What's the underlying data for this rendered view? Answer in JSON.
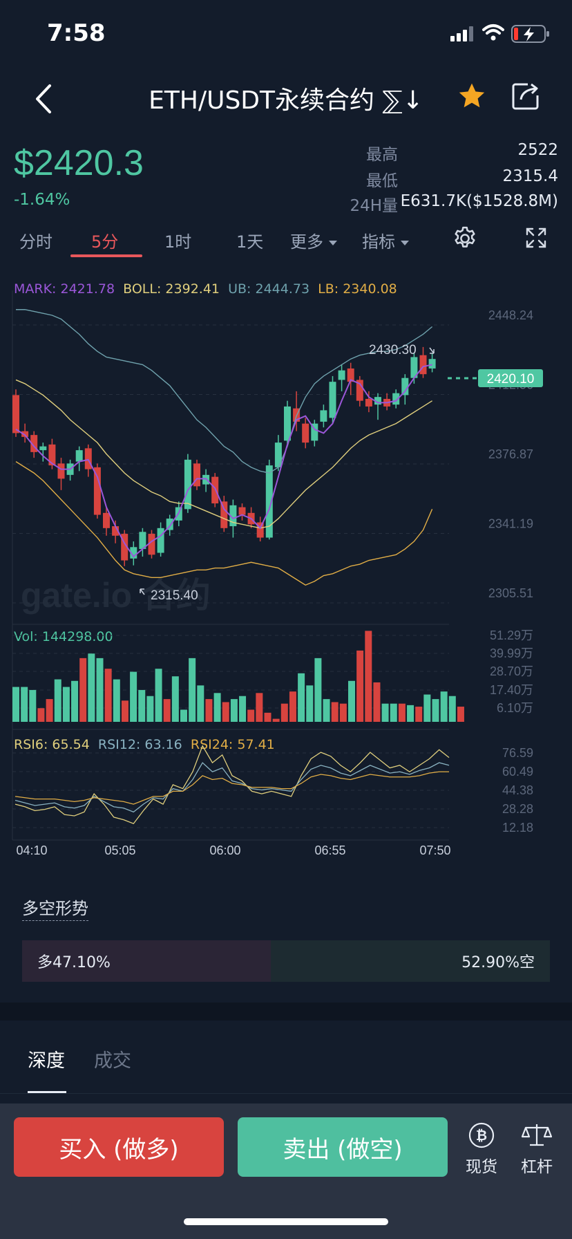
{
  "status": {
    "time": "7:58"
  },
  "header": {
    "title": "ETH/USDT永续合约 ⅀↓"
  },
  "price": {
    "last": "$2420.3",
    "change": "-1.64%"
  },
  "stats": {
    "high_label": "最高",
    "high_value": "2522",
    "low_label": "最低",
    "low_value": "2315.4",
    "vol_label": "24H量",
    "vol_value": "E631.7K($1528.8M)"
  },
  "tabs": {
    "time": "分时",
    "m5": "5分",
    "h1": "1时",
    "d1": "1天",
    "more": "更多",
    "indicators": "指标"
  },
  "indicators": {
    "mark": "MARK: 2421.78",
    "boll": "BOLL: 2392.41",
    "ub": "UB: 2444.73",
    "lb": "LB: 2340.08",
    "vol": "Vol: 144298.00",
    "rsi6": "RSI6: 65.54",
    "rsi12": "RSI12: 63.16",
    "rsi24": "RSI24: 57.41"
  },
  "chart_data": [
    {
      "type": "candlestick",
      "title": "",
      "ylim": [
        2300,
        2455
      ],
      "y_ticks": [
        "2448.24",
        "2412.56",
        "2376.87",
        "2341.19",
        "2305.51"
      ],
      "last_price_tag": "2420.10",
      "annotations": [
        {
          "text": "2430.30",
          "x": 44,
          "y": 2430.3
        },
        {
          "text": "2315.40",
          "x": 13,
          "y": 2315.4
        }
      ],
      "watermark": "gate.io 合约",
      "candles": [
        {
          "o": 2405,
          "c": 2385,
          "h": 2408,
          "l": 2383
        },
        {
          "o": 2386,
          "c": 2383,
          "h": 2390,
          "l": 2380
        },
        {
          "o": 2384,
          "c": 2375,
          "h": 2386,
          "l": 2372
        },
        {
          "o": 2376,
          "c": 2378,
          "h": 2380,
          "l": 2370
        },
        {
          "o": 2379,
          "c": 2368,
          "h": 2382,
          "l": 2366
        },
        {
          "o": 2369,
          "c": 2361,
          "h": 2372,
          "l": 2355
        },
        {
          "o": 2363,
          "c": 2369,
          "h": 2371,
          "l": 2360
        },
        {
          "o": 2370,
          "c": 2376,
          "h": 2378,
          "l": 2365
        },
        {
          "o": 2377,
          "c": 2366,
          "h": 2379,
          "l": 2362
        },
        {
          "o": 2367,
          "c": 2342,
          "h": 2369,
          "l": 2340
        },
        {
          "o": 2343,
          "c": 2335,
          "h": 2346,
          "l": 2331
        },
        {
          "o": 2336,
          "c": 2331,
          "h": 2339,
          "l": 2327
        },
        {
          "o": 2332,
          "c": 2318,
          "h": 2334,
          "l": 2315
        },
        {
          "o": 2319,
          "c": 2325,
          "h": 2328,
          "l": 2315.4
        },
        {
          "o": 2324,
          "c": 2333,
          "h": 2335,
          "l": 2320
        },
        {
          "o": 2332,
          "c": 2321,
          "h": 2334,
          "l": 2319
        },
        {
          "o": 2322,
          "c": 2335,
          "h": 2338,
          "l": 2320
        },
        {
          "o": 2334,
          "c": 2340,
          "h": 2342,
          "l": 2331
        },
        {
          "o": 2339,
          "c": 2346,
          "h": 2349,
          "l": 2336
        },
        {
          "o": 2345,
          "c": 2371,
          "h": 2374,
          "l": 2343
        },
        {
          "o": 2369,
          "c": 2357,
          "h": 2371,
          "l": 2355
        },
        {
          "o": 2358,
          "c": 2363,
          "h": 2366,
          "l": 2354
        },
        {
          "o": 2362,
          "c": 2348,
          "h": 2364,
          "l": 2346
        },
        {
          "o": 2349,
          "c": 2335,
          "h": 2352,
          "l": 2333
        },
        {
          "o": 2336,
          "c": 2347,
          "h": 2350,
          "l": 2330
        },
        {
          "o": 2346,
          "c": 2342,
          "h": 2348,
          "l": 2339
        },
        {
          "o": 2343,
          "c": 2337,
          "h": 2346,
          "l": 2335
        },
        {
          "o": 2338,
          "c": 2330,
          "h": 2341,
          "l": 2328
        },
        {
          "o": 2330,
          "c": 2368,
          "h": 2371,
          "l": 2329
        },
        {
          "o": 2367,
          "c": 2380,
          "h": 2384,
          "l": 2365
        },
        {
          "o": 2381,
          "c": 2399,
          "h": 2402,
          "l": 2379
        },
        {
          "o": 2398,
          "c": 2391,
          "h": 2407,
          "l": 2386
        },
        {
          "o": 2390,
          "c": 2380,
          "h": 2393,
          "l": 2377
        },
        {
          "o": 2381,
          "c": 2390,
          "h": 2392,
          "l": 2378
        },
        {
          "o": 2391,
          "c": 2397,
          "h": 2400,
          "l": 2388
        },
        {
          "o": 2393,
          "c": 2412,
          "h": 2415,
          "l": 2390
        },
        {
          "o": 2413,
          "c": 2418,
          "h": 2421,
          "l": 2407
        },
        {
          "o": 2419,
          "c": 2412,
          "h": 2422,
          "l": 2405
        },
        {
          "o": 2413,
          "c": 2402,
          "h": 2415,
          "l": 2399
        },
        {
          "o": 2403,
          "c": 2399,
          "h": 2407,
          "l": 2396
        },
        {
          "o": 2400,
          "c": 2404,
          "h": 2406,
          "l": 2392
        },
        {
          "o": 2403,
          "c": 2399,
          "h": 2406,
          "l": 2397
        },
        {
          "o": 2400,
          "c": 2406,
          "h": 2408,
          "l": 2398
        },
        {
          "o": 2405,
          "c": 2414,
          "h": 2416,
          "l": 2400
        },
        {
          "o": 2414,
          "c": 2425,
          "h": 2427,
          "l": 2411
        },
        {
          "o": 2426,
          "c": 2416,
          "h": 2430.3,
          "l": 2414
        },
        {
          "o": 2419,
          "c": 2424,
          "h": 2427,
          "l": 2417
        }
      ],
      "mark_line": [
        2387,
        2384,
        2378,
        2373,
        2369,
        2366,
        2366,
        2370,
        2371,
        2362,
        2346,
        2336,
        2327,
        2320,
        2324,
        2328,
        2331,
        2336,
        2343,
        2355,
        2361,
        2361,
        2356,
        2345,
        2340,
        2342,
        2340,
        2335,
        2345,
        2362,
        2379,
        2392,
        2394,
        2387,
        2385,
        2390,
        2402,
        2413,
        2411,
        2404,
        2401,
        2401,
        2402,
        2407,
        2414,
        2420,
        2421
      ],
      "ub_line": [
        2450,
        2450,
        2449,
        2448,
        2447,
        2445,
        2441,
        2437,
        2432,
        2428,
        2425,
        2424,
        2423,
        2422,
        2421,
        2418,
        2414,
        2410,
        2404,
        2398,
        2392,
        2388,
        2383,
        2378,
        2375,
        2370,
        2367,
        2365,
        2364,
        2367,
        2378,
        2394,
        2404,
        2411,
        2415,
        2418,
        2421,
        2424,
        2426,
        2427,
        2428,
        2428,
        2429,
        2431,
        2434,
        2437,
        2441
      ],
      "boll_line": [
        2413,
        2411,
        2408,
        2405,
        2401,
        2397,
        2392,
        2388,
        2384,
        2380,
        2374,
        2369,
        2364,
        2360,
        2357,
        2354,
        2352,
        2349,
        2348,
        2348,
        2346,
        2344,
        2342,
        2340,
        2338,
        2337,
        2336,
        2335,
        2336,
        2340,
        2345,
        2350,
        2355,
        2359,
        2363,
        2367,
        2372,
        2377,
        2381,
        2384,
        2386,
        2388,
        2390,
        2393,
        2396,
        2399,
        2402
      ],
      "lb_line": [
        2370,
        2367,
        2364,
        2360,
        2355,
        2350,
        2345,
        2340,
        2335,
        2330,
        2324,
        2318,
        2313,
        2311,
        2310,
        2309,
        2309,
        2310,
        2311,
        2312,
        2313,
        2313,
        2314,
        2314,
        2315,
        2316,
        2317,
        2316,
        2315,
        2314,
        2311,
        2308,
        2305,
        2307,
        2310,
        2311,
        2313,
        2315,
        2316,
        2318,
        2319,
        2320,
        2321,
        2324,
        2328,
        2334,
        2345
      ]
    },
    {
      "type": "bar",
      "title": "",
      "ylim": [
        0,
        62
      ],
      "y_ticks": [
        "51.29万",
        "39.99万",
        "28.70万",
        "17.40万",
        "6.10万"
      ],
      "values": [
        23,
        23,
        21,
        9,
        15,
        28,
        23,
        27,
        42,
        45,
        42,
        35,
        28,
        14,
        33,
        21,
        17,
        35,
        15,
        30,
        8,
        42,
        24,
        15,
        19,
        13,
        15,
        17,
        8,
        19,
        6,
        2,
        12,
        20,
        32,
        24,
        42,
        15,
        13,
        12,
        27,
        47,
        60,
        26,
        12,
        12,
        12,
        11,
        10,
        18,
        15,
        20,
        17,
        10
      ]
    },
    {
      "type": "line",
      "title": "",
      "ylim": [
        5,
        85
      ],
      "y_ticks": [
        "76.59",
        "60.49",
        "44.38",
        "28.28",
        "12.18"
      ],
      "x_ticks": [
        "04:10",
        "05:05",
        "06:00",
        "06:55",
        "07:50"
      ],
      "series": [
        {
          "name": "RSI6",
          "values": [
            30,
            28,
            25,
            26,
            28,
            22,
            21,
            24,
            38,
            30,
            20,
            18,
            15,
            25,
            34,
            30,
            45,
            42,
            55,
            75,
            62,
            68,
            52,
            48,
            40,
            38,
            40,
            38,
            36,
            52,
            65,
            70,
            67,
            60,
            55,
            62,
            70,
            64,
            58,
            60,
            55,
            60,
            65,
            72,
            66
          ]
        },
        {
          "name": "RSI12",
          "values": [
            33,
            31,
            29,
            30,
            31,
            28,
            27,
            29,
            36,
            32,
            28,
            27,
            24,
            30,
            35,
            34,
            42,
            40,
            49,
            62,
            55,
            58,
            48,
            46,
            42,
            41,
            42,
            41,
            40,
            49,
            57,
            60,
            58,
            54,
            52,
            56,
            60,
            57,
            54,
            55,
            53,
            56,
            58,
            62,
            60
          ]
        },
        {
          "name": "RSI24",
          "values": [
            36,
            35,
            34,
            34,
            34,
            33,
            32,
            33,
            35,
            34,
            33,
            32,
            30,
            33,
            36,
            36,
            40,
            40,
            45,
            52,
            49,
            50,
            46,
            45,
            43,
            43,
            43,
            42,
            42,
            46,
            51,
            53,
            52,
            50,
            49,
            51,
            53,
            52,
            51,
            51,
            51,
            52,
            54,
            55,
            55
          ]
        }
      ]
    }
  ],
  "long_short": {
    "title": "多空形势",
    "long": "多47.10%",
    "short": "52.90%空",
    "long_ratio": 0.471
  },
  "bottom_tabs": {
    "depth": "深度",
    "trades": "成交"
  },
  "actions": {
    "buy": "买入 (做多)",
    "sell": "卖出 (做空)",
    "spot": "现货",
    "leverage": "杠杆"
  },
  "colors": {
    "up": "#4fc7a2",
    "down": "#d8443f"
  }
}
